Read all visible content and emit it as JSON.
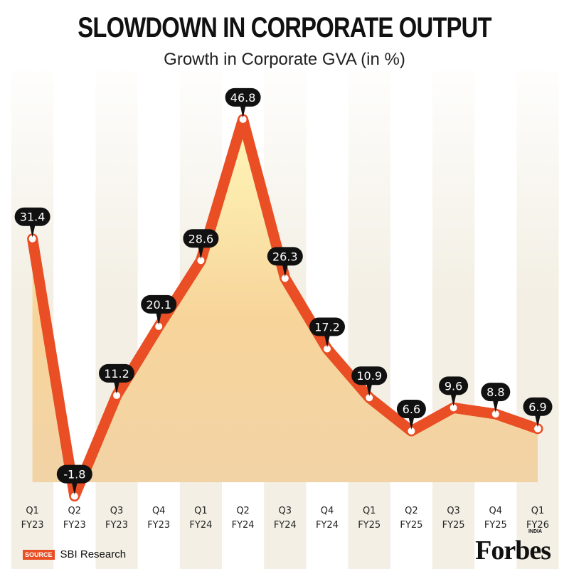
{
  "chart_data": {
    "type": "line",
    "title": "SLOWDOWN IN CORPORATE OUTPUT",
    "subtitle": "Growth in Corporate GVA (in %)",
    "categories": [
      [
        "Q1",
        "FY23"
      ],
      [
        "Q2",
        "FY23"
      ],
      [
        "Q3",
        "FY23"
      ],
      [
        "Q4",
        "FY23"
      ],
      [
        "Q1",
        "FY24"
      ],
      [
        "Q2",
        "FY24"
      ],
      [
        "Q3",
        "FY24"
      ],
      [
        "Q4",
        "FY24"
      ],
      [
        "Q1",
        "FY25"
      ],
      [
        "Q2",
        "FY25"
      ],
      [
        "Q3",
        "FY25"
      ],
      [
        "Q4",
        "FY25"
      ],
      [
        "Q1",
        "FY26"
      ]
    ],
    "values": [
      31.4,
      -1.8,
      11.2,
      20.1,
      28.6,
      46.8,
      26.3,
      17.2,
      10.9,
      6.6,
      9.6,
      8.8,
      6.9
    ],
    "value_labels": [
      "31.4",
      "-1.8",
      "11.2",
      "20.1",
      "28.6",
      "46.8",
      "26.3",
      "17.2",
      "10.9",
      "6.6",
      "9.6",
      "8.8",
      "6.9"
    ],
    "ylim": [
      -1.8,
      46.8
    ],
    "grid": false,
    "colors": {
      "line": "#e94e24",
      "label_bg": "#111111",
      "fill": "#fbe7a0",
      "stripe": "#f3efe4"
    }
  },
  "source": {
    "tag": "SOURCE",
    "text": "SBI Research"
  },
  "logo": {
    "text": "Forbes",
    "sub": "INDIA"
  }
}
